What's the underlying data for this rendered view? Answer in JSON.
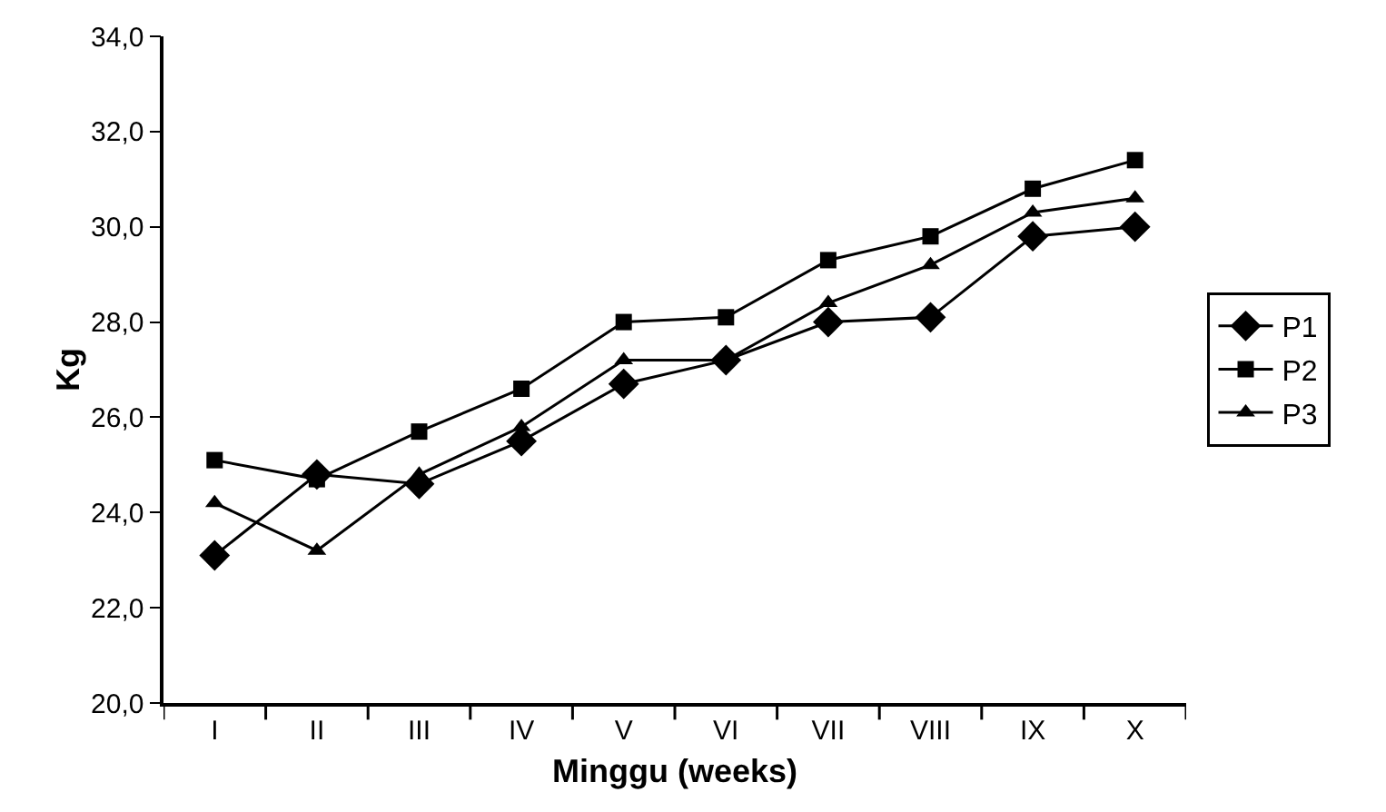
{
  "chart_data": {
    "type": "line",
    "xlabel": "Minggu (weeks)",
    "ylabel": "Kg",
    "categories": [
      "I",
      "II",
      "III",
      "IV",
      "V",
      "VI",
      "VII",
      "VIII",
      "IX",
      "X"
    ],
    "series": [
      {
        "name": "P1",
        "color": "#000000",
        "marker": "diamond",
        "values": [
          23.1,
          24.8,
          24.6,
          25.5,
          26.7,
          27.2,
          28.0,
          28.1,
          29.8,
          30.0
        ]
      },
      {
        "name": "P2",
        "color": "#000000",
        "marker": "square",
        "values": [
          25.1,
          24.7,
          25.7,
          26.6,
          28.0,
          28.1,
          29.3,
          29.8,
          30.8,
          31.4
        ]
      },
      {
        "name": "P3",
        "color": "#000000",
        "marker": "triangle",
        "values": [
          24.2,
          23.2,
          24.8,
          25.8,
          27.2,
          27.2,
          28.4,
          29.2,
          30.3,
          30.6
        ]
      }
    ],
    "ylim": [
      20,
      34
    ],
    "yticks": [
      {
        "value": 20,
        "label": "20,0"
      },
      {
        "value": 22,
        "label": "22,0"
      },
      {
        "value": 24,
        "label": "24,0"
      },
      {
        "value": 26,
        "label": "26,0"
      },
      {
        "value": 28,
        "label": "28,0"
      },
      {
        "value": 30,
        "label": "30,0"
      },
      {
        "value": 32,
        "label": "32,0"
      },
      {
        "value": 34,
        "label": "34,0"
      }
    ],
    "grid": false,
    "legend": "right",
    "line_style": "solid"
  }
}
